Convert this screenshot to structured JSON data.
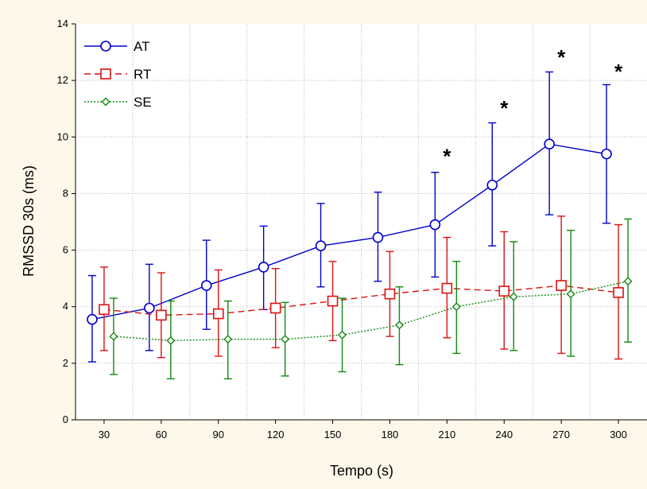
{
  "chart_data": {
    "type": "line",
    "xlabel": "Tempo (s)",
    "ylabel": "RMSSD 30s (ms)",
    "categories": [
      30,
      60,
      90,
      120,
      150,
      180,
      210,
      240,
      270,
      300
    ],
    "x_tick_labels": [
      "30",
      "60",
      "90",
      "120",
      "150",
      "180",
      "210",
      "240",
      "270",
      "300"
    ],
    "ylim": [
      0,
      14
    ],
    "y_ticks": [
      0,
      2,
      4,
      6,
      8,
      10,
      12,
      14
    ],
    "y_tick_labels": [
      "0",
      "2",
      "4",
      "6",
      "8",
      "10",
      "12",
      "14"
    ],
    "grid": true,
    "legend_position": "top-left",
    "series": [
      {
        "name": "AT",
        "color": "#0000cc",
        "marker": "circle",
        "line_style": "solid",
        "values": [
          3.55,
          3.95,
          4.75,
          5.4,
          6.15,
          6.45,
          6.9,
          8.3,
          9.75,
          9.4
        ],
        "error_low": [
          2.05,
          2.45,
          3.2,
          3.9,
          4.7,
          4.9,
          5.05,
          6.15,
          7.25,
          6.95
        ],
        "error_high": [
          5.1,
          5.5,
          6.35,
          6.85,
          7.65,
          8.05,
          8.75,
          10.5,
          12.3,
          11.85
        ]
      },
      {
        "name": "RT",
        "color": "#dd1111",
        "marker": "square",
        "line_style": "dashed",
        "values": [
          3.9,
          3.7,
          3.75,
          3.95,
          4.2,
          4.45,
          4.65,
          4.55,
          4.75,
          4.5
        ],
        "error_low": [
          2.45,
          2.2,
          2.25,
          2.55,
          2.8,
          2.95,
          2.9,
          2.5,
          2.35,
          2.15
        ],
        "error_high": [
          5.4,
          5.2,
          5.3,
          5.35,
          5.6,
          5.95,
          6.45,
          6.65,
          7.2,
          6.9
        ]
      },
      {
        "name": "SE",
        "color": "#118811",
        "marker": "diamond",
        "line_style": "dotted",
        "values": [
          2.95,
          2.8,
          2.85,
          2.85,
          3.0,
          3.35,
          4.0,
          4.35,
          4.45,
          4.9
        ],
        "error_low": [
          1.6,
          1.45,
          1.45,
          1.55,
          1.7,
          1.95,
          2.35,
          2.45,
          2.25,
          2.75
        ],
        "error_high": [
          4.3,
          4.2,
          4.2,
          4.15,
          4.3,
          4.7,
          5.6,
          6.3,
          6.7,
          7.1
        ]
      }
    ],
    "annotations": [
      {
        "text": "*",
        "x": 210,
        "y": 9.4
      },
      {
        "text": "*",
        "x": 240,
        "y": 11.1
      },
      {
        "text": "*",
        "x": 270,
        "y": 12.9
      },
      {
        "text": "*",
        "x": 300,
        "y": 12.4
      }
    ]
  }
}
